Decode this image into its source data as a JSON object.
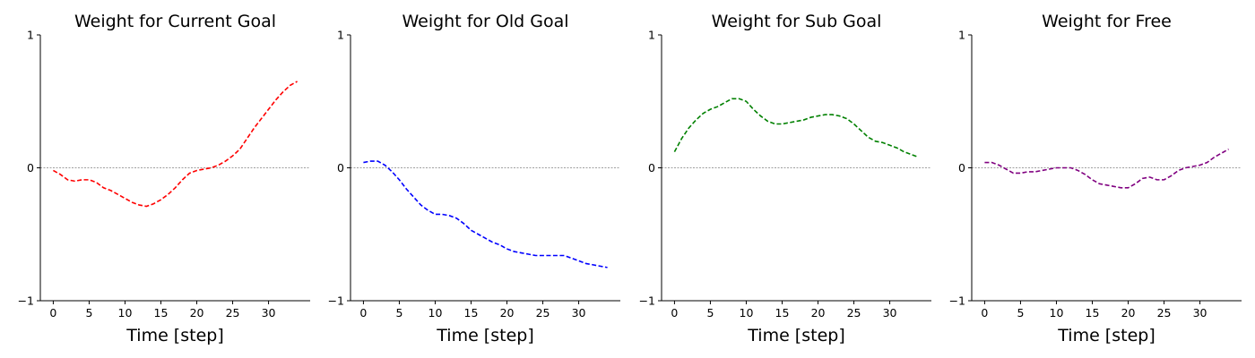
{
  "chart_data": [
    {
      "type": "line",
      "title": "Weight for Current Goal",
      "xlabel": "Time [step]",
      "ylabel": "",
      "xlim": [
        -1.8,
        35.8
      ],
      "ylim": [
        -1,
        1
      ],
      "xticks": [
        0,
        5,
        10,
        15,
        20,
        25,
        30
      ],
      "yticks": [
        -1,
        0,
        1
      ],
      "zero_line": true,
      "color": "#ff0000",
      "x": [
        0,
        1,
        2,
        3,
        4,
        5,
        6,
        7,
        8,
        9,
        10,
        11,
        12,
        13,
        14,
        15,
        16,
        17,
        18,
        19,
        20,
        21,
        22,
        23,
        24,
        25,
        26,
        27,
        28,
        29,
        30,
        31,
        32,
        33,
        34
      ],
      "y": [
        -0.02,
        -0.05,
        -0.09,
        -0.1,
        -0.09,
        -0.09,
        -0.11,
        -0.15,
        -0.17,
        -0.2,
        -0.23,
        -0.26,
        -0.28,
        -0.29,
        -0.27,
        -0.24,
        -0.2,
        -0.15,
        -0.09,
        -0.04,
        -0.02,
        -0.01,
        0.0,
        0.02,
        0.05,
        0.09,
        0.14,
        0.22,
        0.3,
        0.37,
        0.44,
        0.51,
        0.57,
        0.62,
        0.65
      ]
    },
    {
      "type": "line",
      "title": "Weight for Old Goal",
      "xlabel": "Time [step]",
      "ylabel": "",
      "xlim": [
        -1.8,
        35.8
      ],
      "ylim": [
        -1,
        1
      ],
      "xticks": [
        0,
        5,
        10,
        15,
        20,
        25,
        30
      ],
      "yticks": [
        -1,
        0,
        1
      ],
      "zero_line": true,
      "color": "#0000ff",
      "x": [
        0,
        1,
        2,
        3,
        4,
        5,
        6,
        7,
        8,
        9,
        10,
        11,
        12,
        13,
        14,
        15,
        16,
        17,
        18,
        19,
        20,
        21,
        22,
        23,
        24,
        25,
        26,
        27,
        28,
        29,
        30,
        31,
        32,
        33,
        34
      ],
      "y": [
        0.04,
        0.05,
        0.05,
        0.02,
        -0.03,
        -0.09,
        -0.16,
        -0.22,
        -0.28,
        -0.32,
        -0.35,
        -0.35,
        -0.36,
        -0.38,
        -0.42,
        -0.47,
        -0.5,
        -0.53,
        -0.56,
        -0.58,
        -0.61,
        -0.63,
        -0.64,
        -0.65,
        -0.66,
        -0.66,
        -0.66,
        -0.66,
        -0.66,
        -0.68,
        -0.7,
        -0.72,
        -0.73,
        -0.74,
        -0.75
      ]
    },
    {
      "type": "line",
      "title": "Weight for Sub Goal",
      "xlabel": "Time [step]",
      "ylabel": "",
      "xlim": [
        -1.8,
        35.8
      ],
      "ylim": [
        -1,
        1
      ],
      "xticks": [
        0,
        5,
        10,
        15,
        20,
        25,
        30
      ],
      "yticks": [
        -1,
        0,
        1
      ],
      "zero_line": true,
      "color": "#008000",
      "x": [
        0,
        1,
        2,
        3,
        4,
        5,
        6,
        7,
        8,
        9,
        10,
        11,
        12,
        13,
        14,
        15,
        16,
        17,
        18,
        19,
        20,
        21,
        22,
        23,
        24,
        25,
        26,
        27,
        28,
        29,
        30,
        31,
        32,
        33,
        34
      ],
      "y": [
        0.12,
        0.22,
        0.3,
        0.36,
        0.41,
        0.44,
        0.46,
        0.49,
        0.52,
        0.52,
        0.5,
        0.44,
        0.39,
        0.35,
        0.33,
        0.33,
        0.34,
        0.35,
        0.36,
        0.38,
        0.39,
        0.4,
        0.4,
        0.39,
        0.37,
        0.33,
        0.28,
        0.23,
        0.2,
        0.19,
        0.17,
        0.15,
        0.12,
        0.1,
        0.08
      ]
    },
    {
      "type": "line",
      "title": "Weight for Free",
      "xlabel": "Time [step]",
      "ylabel": "",
      "xlim": [
        -1.8,
        35.8
      ],
      "ylim": [
        -1,
        1
      ],
      "xticks": [
        0,
        5,
        10,
        15,
        20,
        25,
        30
      ],
      "yticks": [
        -1,
        0,
        1
      ],
      "zero_line": true,
      "color": "#800080",
      "x": [
        0,
        1,
        2,
        3,
        4,
        5,
        6,
        7,
        8,
        9,
        10,
        11,
        12,
        13,
        14,
        15,
        16,
        17,
        18,
        19,
        20,
        21,
        22,
        23,
        24,
        25,
        26,
        27,
        28,
        29,
        30,
        31,
        32,
        33,
        34
      ],
      "y": [
        0.04,
        0.04,
        0.02,
        -0.01,
        -0.04,
        -0.04,
        -0.03,
        -0.03,
        -0.02,
        -0.01,
        0.0,
        0.0,
        0.0,
        -0.02,
        -0.05,
        -0.09,
        -0.12,
        -0.13,
        -0.14,
        -0.15,
        -0.15,
        -0.12,
        -0.08,
        -0.07,
        -0.09,
        -0.09,
        -0.06,
        -0.02,
        0.0,
        0.01,
        0.02,
        0.04,
        0.08,
        0.11,
        0.14
      ]
    }
  ]
}
